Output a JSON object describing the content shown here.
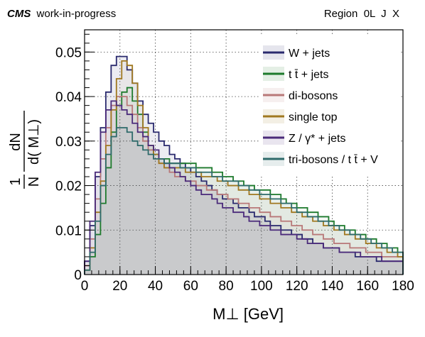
{
  "header": {
    "experiment": "CMS",
    "status": "work-in-progress",
    "region": "Region  0L  J  X"
  },
  "chart_data": {
    "type": "line",
    "xlabel": "M⊥ [GeV]",
    "ylabel": "1/N dN/d(M⊥)",
    "ylabel_frac_num_left": "1",
    "ylabel_frac_den_left": "N",
    "ylabel_frac_num_right": "dN",
    "ylabel_frac_den_right": "d( M⊥)",
    "xlim": [
      0,
      180
    ],
    "ylim": [
      0,
      0.055
    ],
    "grid": true,
    "legend_position": "top-right",
    "x_ticks": [
      "0",
      "20",
      "40",
      "60",
      "80",
      "100",
      "120",
      "140",
      "160",
      "180"
    ],
    "y_ticks": [
      "0",
      "0.01",
      "0.02",
      "0.03",
      "0.04",
      "0.05"
    ],
    "bin_width": 3,
    "bin_edges_start": 0,
    "series": [
      {
        "name": "W + jets",
        "color": "#2a2a6e",
        "values": [
          0.003,
          0.011,
          0.022,
          0.033,
          0.041,
          0.047,
          0.049,
          0.049,
          0.046,
          0.043,
          0.039,
          0.036,
          0.034,
          0.032,
          0.03,
          0.029,
          0.027,
          0.026,
          0.025,
          0.024,
          0.023,
          0.022,
          0.021,
          0.02,
          0.019,
          0.018,
          0.017,
          0.017,
          0.016,
          0.015,
          0.015,
          0.014,
          0.013,
          0.013,
          0.012,
          0.011,
          0.011,
          0.01,
          0.01,
          0.009,
          0.009,
          0.008,
          0.008,
          0.007,
          0.007,
          0.006,
          0.006,
          0.006,
          0.005,
          0.005,
          0.005,
          0.004,
          0.004,
          0.004,
          0.004,
          0.003,
          0.003,
          0.003,
          0.003,
          0.003
        ]
      },
      {
        "name": "t t̄ + jets",
        "color": "#1d7a2c",
        "values": [
          0.001,
          0.004,
          0.009,
          0.016,
          0.024,
          0.032,
          0.038,
          0.041,
          0.042,
          0.039,
          0.036,
          0.032,
          0.029,
          0.027,
          0.026,
          0.026,
          0.025,
          0.025,
          0.025,
          0.025,
          0.025,
          0.024,
          0.024,
          0.024,
          0.023,
          0.023,
          0.022,
          0.022,
          0.021,
          0.021,
          0.02,
          0.02,
          0.019,
          0.019,
          0.019,
          0.018,
          0.018,
          0.017,
          0.016,
          0.016,
          0.015,
          0.015,
          0.014,
          0.014,
          0.013,
          0.013,
          0.012,
          0.011,
          0.011,
          0.01,
          0.01,
          0.009,
          0.009,
          0.008,
          0.008,
          0.007,
          0.007,
          0.006,
          0.006,
          0.005
        ]
      },
      {
        "name": "di-bosons",
        "color": "#b87878",
        "values": [
          0.002,
          0.008,
          0.017,
          0.026,
          0.033,
          0.038,
          0.04,
          0.04,
          0.038,
          0.036,
          0.033,
          0.03,
          0.028,
          0.026,
          0.025,
          0.024,
          0.023,
          0.022,
          0.022,
          0.021,
          0.021,
          0.02,
          0.02,
          0.019,
          0.019,
          0.018,
          0.018,
          0.017,
          0.017,
          0.016,
          0.016,
          0.015,
          0.015,
          0.014,
          0.014,
          0.013,
          0.013,
          0.012,
          0.012,
          0.011,
          0.011,
          0.01,
          0.01,
          0.009,
          0.009,
          0.008,
          0.008,
          0.007,
          0.007,
          0.007,
          0.006,
          0.006,
          0.006,
          0.005,
          0.005,
          0.005,
          0.004,
          0.004,
          0.004,
          0.004
        ]
      },
      {
        "name": "single top",
        "color": "#a07820",
        "values": [
          0.001,
          0.006,
          0.014,
          0.021,
          0.029,
          0.037,
          0.044,
          0.048,
          0.047,
          0.043,
          0.038,
          0.033,
          0.029,
          0.027,
          0.025,
          0.024,
          0.024,
          0.024,
          0.024,
          0.023,
          0.023,
          0.023,
          0.022,
          0.022,
          0.022,
          0.021,
          0.021,
          0.02,
          0.02,
          0.019,
          0.019,
          0.018,
          0.018,
          0.017,
          0.017,
          0.016,
          0.016,
          0.015,
          0.015,
          0.014,
          0.014,
          0.013,
          0.013,
          0.012,
          0.012,
          0.011,
          0.011,
          0.01,
          0.01,
          0.009,
          0.009,
          0.008,
          0.008,
          0.007,
          0.007,
          0.006,
          0.006,
          0.005,
          0.005,
          0.004
        ]
      },
      {
        "name": "Z / γ* + jets",
        "color": "#4a2a7a",
        "values": [
          0.003,
          0.012,
          0.023,
          0.032,
          0.037,
          0.039,
          0.038,
          0.037,
          0.036,
          0.034,
          0.032,
          0.031,
          0.029,
          0.028,
          0.026,
          0.025,
          0.024,
          0.023,
          0.022,
          0.021,
          0.02,
          0.019,
          0.018,
          0.018,
          0.017,
          0.016,
          0.015,
          0.015,
          0.014,
          0.014,
          0.013,
          0.012,
          0.012,
          0.011,
          0.011,
          0.01,
          0.01,
          0.009,
          0.009,
          0.009,
          0.008,
          0.008,
          0.007,
          0.007,
          0.007,
          0.006,
          0.006,
          0.006,
          0.005,
          0.005,
          0.005,
          0.005,
          0.004,
          0.004,
          0.004,
          0.004,
          0.003,
          0.003,
          0.003,
          0.003
        ]
      },
      {
        "name": "tri-bosons / t t̄ + V",
        "color": "#2e6a6a",
        "values": [
          0.001,
          0.005,
          0.012,
          0.02,
          0.027,
          0.031,
          0.033,
          0.033,
          0.032,
          0.03,
          0.029,
          0.028,
          0.027,
          0.026,
          0.026,
          0.025,
          0.025,
          0.025,
          0.024,
          0.024,
          0.024,
          0.023,
          0.023,
          0.023,
          0.022,
          0.022,
          0.021,
          0.021,
          0.021,
          0.02,
          0.02,
          0.019,
          0.019,
          0.018,
          0.018,
          0.017,
          0.017,
          0.016,
          0.016,
          0.015,
          0.014,
          0.014,
          0.013,
          0.013,
          0.012,
          0.012,
          0.011,
          0.011,
          0.01,
          0.01,
          0.009,
          0.009,
          0.008,
          0.008,
          0.007,
          0.007,
          0.006,
          0.006,
          0.005,
          0.005
        ]
      }
    ]
  }
}
